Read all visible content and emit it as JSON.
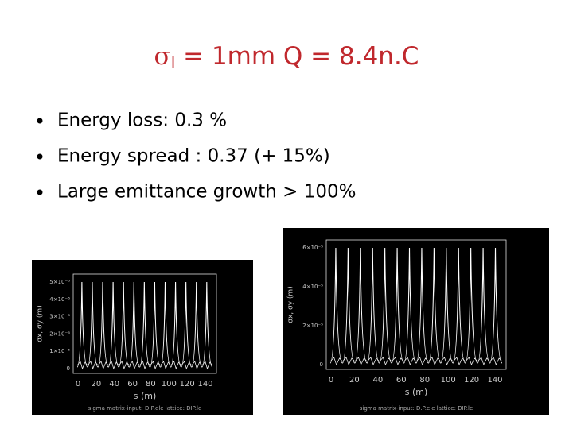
{
  "title": {
    "symbol": "σ",
    "subscript": "l",
    "text": " = 1mm  Q = 8.4n.C"
  },
  "bullets": [
    "Energy loss: 0.3 %",
    "Energy spread : 0.37 (+ 15%)",
    "Large emittance growth  > 100%"
  ],
  "plots": [
    {
      "x_label": "s (m)",
      "y_label": "σx, σy (m)",
      "caption": "sigma matrix-input: D.P.ele  lattice: DIP.le",
      "xticks": [
        "0",
        "20",
        "40",
        "60",
        "80",
        "100",
        "120",
        "140"
      ],
      "yticks": [
        "0",
        "1×10⁻⁶",
        "2×10⁻⁶",
        "3×10⁻⁶",
        "4×10⁻⁶",
        "5×10⁻⁶"
      ]
    },
    {
      "x_label": "s (m)",
      "y_label": "σx, σy (m)",
      "caption": "sigma matrix-input: D.P.ele  lattice: DIP.le",
      "xticks": [
        "0",
        "20",
        "40",
        "60",
        "80",
        "100",
        "120",
        "140"
      ],
      "yticks": [
        "0",
        "2×10⁻⁵",
        "4×10⁻⁵",
        "6×10⁻⁵"
      ]
    }
  ]
}
